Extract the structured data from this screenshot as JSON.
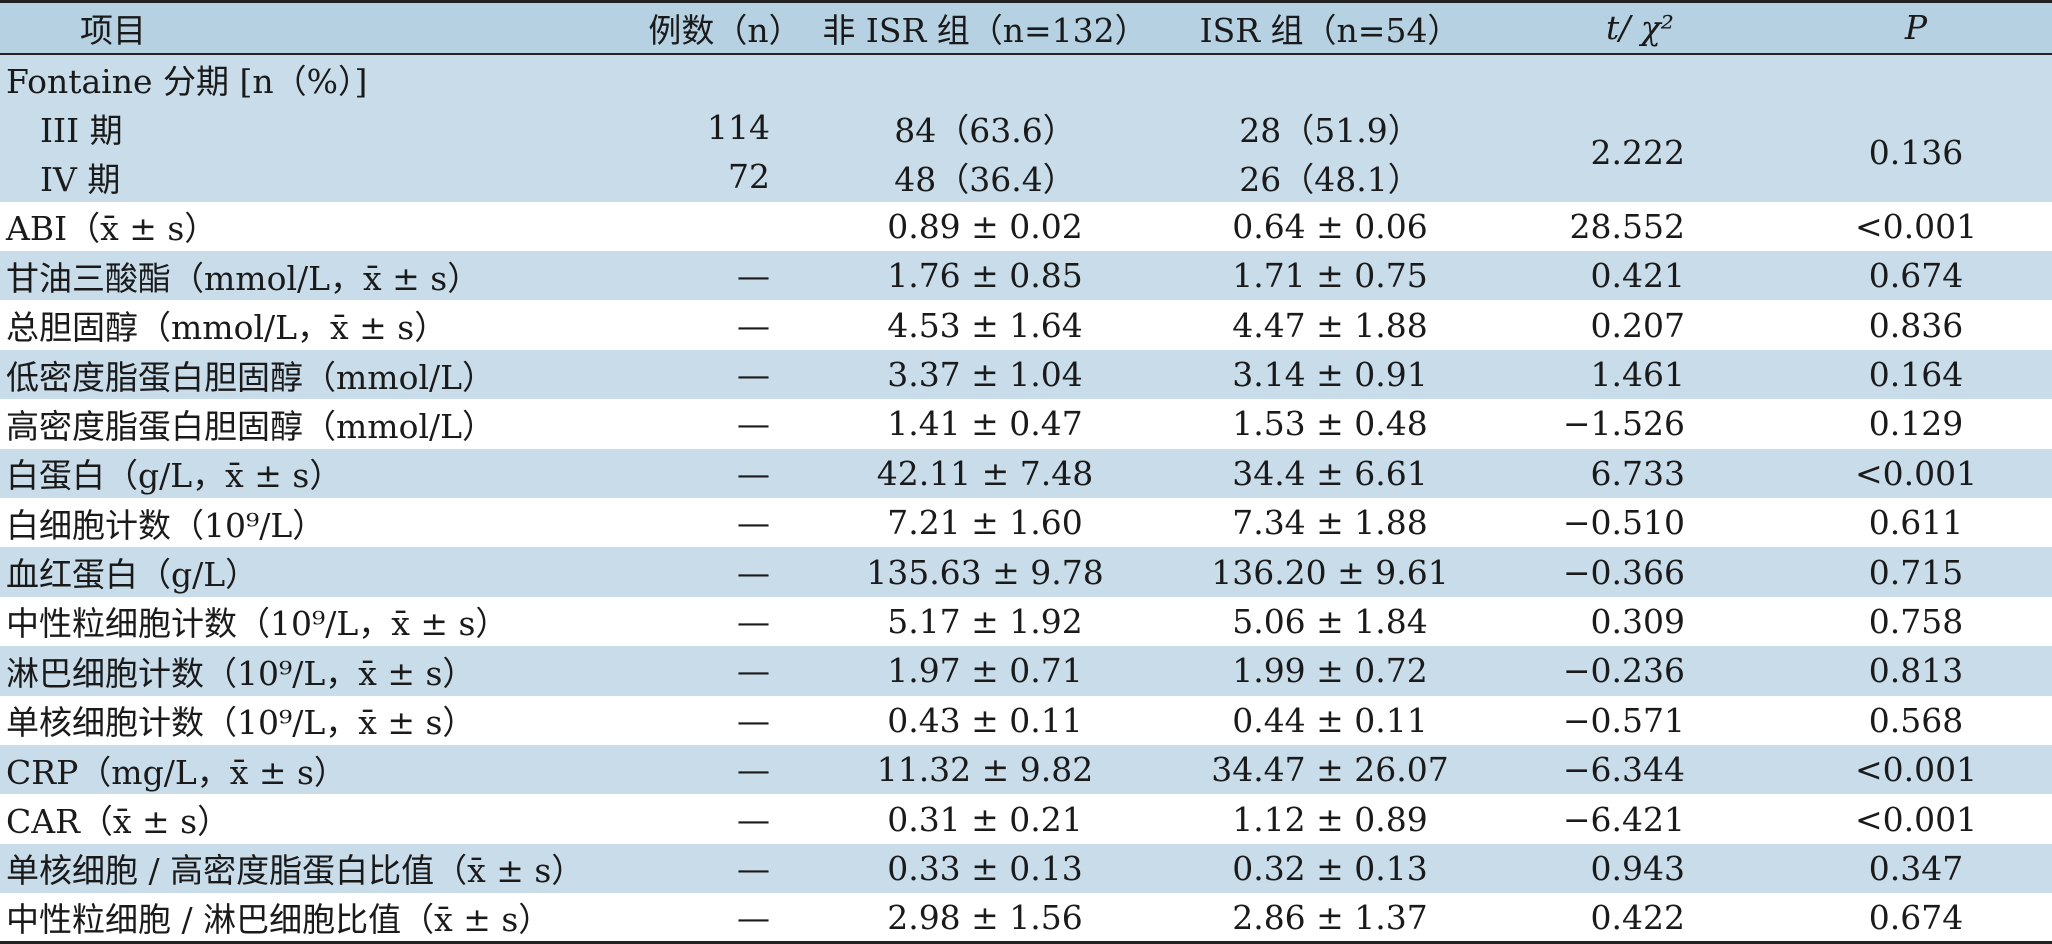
{
  "header": {
    "item": "项目",
    "count": "例数（n）",
    "non_isr": "非 ISR 组（n=132）",
    "isr": "ISR 组（n=54）",
    "stat": "t/ χ²",
    "p": "P"
  },
  "fontaine": {
    "title": "Fontaine 分期 [n（%）]",
    "stage3": {
      "label": "III 期",
      "n": "114",
      "non_isr": "84（63.6）",
      "isr": "28（51.9）"
    },
    "stage4": {
      "label": "IV 期",
      "n": "72",
      "non_isr": "48（36.4）",
      "isr": "26（48.1）"
    },
    "stat": "2.222",
    "p": "0.136"
  },
  "rows": [
    {
      "label": "ABI（x̄ ± s）",
      "n": "",
      "non_isr": "0.89 ± 0.02",
      "isr": "0.64 ± 0.06",
      "stat": "28.552",
      "p": "<0.001"
    },
    {
      "label": "甘油三酸酯（mmol/L，x̄ ± s）",
      "n": "—",
      "non_isr": "1.76 ± 0.85",
      "isr": "1.71 ± 0.75",
      "stat": "0.421",
      "p": "0.674"
    },
    {
      "label": "总胆固醇（mmol/L，x̄ ± s）",
      "n": "—",
      "non_isr": "4.53 ± 1.64",
      "isr": "4.47 ± 1.88",
      "stat": "0.207",
      "p": "0.836"
    },
    {
      "label": "低密度脂蛋白胆固醇（mmol/L）",
      "n": "—",
      "non_isr": "3.37 ± 1.04",
      "isr": "3.14 ± 0.91",
      "stat": "1.461",
      "p": "0.164"
    },
    {
      "label": "高密度脂蛋白胆固醇（mmol/L）",
      "n": "—",
      "non_isr": "1.41 ± 0.47",
      "isr": "1.53 ± 0.48",
      "stat": "−1.526",
      "p": "0.129"
    },
    {
      "label": "白蛋白（g/L，x̄ ± s）",
      "n": "—",
      "non_isr": "42.11 ± 7.48",
      "isr": "34.4 ± 6.61",
      "stat": "6.733",
      "p": "<0.001"
    },
    {
      "label": "白细胞计数（10⁹/L）",
      "n": "—",
      "non_isr": "7.21 ± 1.60",
      "isr": "7.34 ± 1.88",
      "stat": "−0.510",
      "p": "0.611"
    },
    {
      "label": "血红蛋白（g/L）",
      "n": "—",
      "non_isr": "135.63 ± 9.78",
      "isr": "136.20 ± 9.61",
      "stat": "−0.366",
      "p": "0.715"
    },
    {
      "label": "中性粒细胞计数（10⁹/L，x̄ ± s）",
      "n": "—",
      "non_isr": "5.17 ± 1.92",
      "isr": "5.06 ± 1.84",
      "stat": "0.309",
      "p": "0.758"
    },
    {
      "label": "淋巴细胞计数（10⁹/L，x̄ ± s）",
      "n": "—",
      "non_isr": "1.97 ± 0.71",
      "isr": "1.99 ± 0.72",
      "stat": "−0.236",
      "p": "0.813"
    },
    {
      "label": "单核细胞计数（10⁹/L，x̄ ± s）",
      "n": "—",
      "non_isr": "0.43 ± 0.11",
      "isr": "0.44 ± 0.11",
      "stat": "−0.571",
      "p": "0.568"
    },
    {
      "label": "CRP（mg/L，x̄ ± s）",
      "n": "—",
      "non_isr": "11.32 ± 9.82",
      "isr": "34.47 ± 26.07",
      "stat": "−6.344",
      "p": "<0.001"
    },
    {
      "label": "CAR（x̄ ± s）",
      "n": "—",
      "non_isr": "0.31 ± 0.21",
      "isr": "1.12 ± 0.89",
      "stat": "−6.421",
      "p": "<0.001"
    },
    {
      "label": "单核细胞 / 高密度脂蛋白比值（x̄ ± s）",
      "n": "—",
      "non_isr": "0.33 ± 0.13",
      "isr": "0.32 ± 0.13",
      "stat": "0.943",
      "p": "0.347"
    },
    {
      "label": "中性粒细胞 / 淋巴细胞比值（x̄ ± s）",
      "n": "—",
      "non_isr": "2.98 ± 1.56",
      "isr": "2.86 ± 1.37",
      "stat": "0.422",
      "p": "0.674"
    }
  ],
  "colors": {
    "header_bg": "#b6d1e2",
    "stripe_bg": "#c9dcea",
    "white_bg": "#ffffff"
  }
}
